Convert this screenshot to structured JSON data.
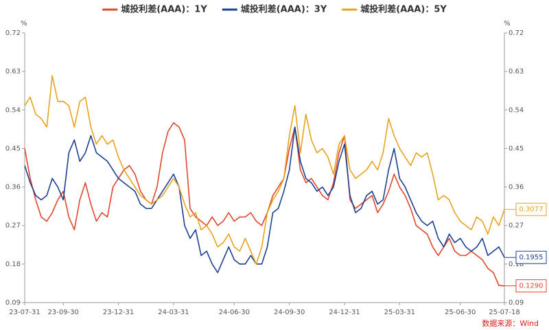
{
  "chart_data": {
    "type": "line",
    "y_unit": "%",
    "y2_unit": "%",
    "source": "数据来源：Wind",
    "categories": [
      "23-07-31",
      null,
      null,
      null,
      null,
      null,
      null,
      "23-09-30",
      null,
      null,
      null,
      null,
      null,
      null,
      null,
      null,
      null,
      "23-12-31",
      null,
      null,
      null,
      null,
      null,
      null,
      null,
      null,
      null,
      "24-03-31",
      null,
      null,
      null,
      null,
      null,
      null,
      null,
      null,
      null,
      null,
      "24-06-30",
      null,
      null,
      null,
      null,
      null,
      null,
      null,
      null,
      null,
      "24-09-30",
      null,
      null,
      null,
      null,
      null,
      null,
      null,
      null,
      null,
      "24-12-31",
      null,
      null,
      null,
      null,
      null,
      null,
      null,
      null,
      null,
      "25-03-31",
      null,
      null,
      null,
      null,
      null,
      null,
      null,
      null,
      null,
      null,
      "25-06-30",
      null,
      null,
      null,
      null,
      null,
      null,
      null,
      "25-07-18"
    ],
    "series": [
      {
        "name": "城投利差(AAA)：1Y",
        "color": "#e0452b",
        "end_label": "0.1290",
        "values": [
          0.45,
          0.38,
          0.33,
          0.29,
          0.28,
          0.3,
          0.33,
          0.35,
          0.29,
          0.26,
          0.33,
          0.37,
          0.32,
          0.28,
          0.3,
          0.29,
          0.36,
          0.38,
          0.4,
          0.41,
          0.39,
          0.35,
          0.33,
          0.32,
          0.36,
          0.44,
          0.49,
          0.51,
          0.5,
          0.47,
          0.31,
          0.29,
          0.28,
          0.27,
          0.29,
          0.27,
          0.28,
          0.3,
          0.28,
          0.29,
          0.29,
          0.3,
          0.28,
          0.27,
          0.3,
          0.34,
          0.36,
          0.38,
          0.45,
          0.5,
          0.4,
          0.37,
          0.38,
          0.36,
          0.34,
          0.33,
          0.37,
          0.44,
          0.48,
          0.33,
          0.31,
          0.32,
          0.33,
          0.34,
          0.3,
          0.32,
          0.35,
          0.39,
          0.36,
          0.34,
          0.31,
          0.27,
          0.26,
          0.25,
          0.22,
          0.2,
          0.22,
          0.24,
          0.21,
          0.2,
          0.2,
          0.21,
          0.2,
          0.19,
          0.17,
          0.16,
          0.13,
          0.129
        ]
      },
      {
        "name": "城投利差(AAA)：3Y",
        "color": "#1a3f8f",
        "end_label": "0.1955",
        "values": [
          0.41,
          0.37,
          0.34,
          0.33,
          0.34,
          0.38,
          0.36,
          0.33,
          0.44,
          0.47,
          0.42,
          0.44,
          0.48,
          0.44,
          0.43,
          0.42,
          0.4,
          0.38,
          0.37,
          0.36,
          0.35,
          0.32,
          0.31,
          0.31,
          0.33,
          0.35,
          0.37,
          0.39,
          0.36,
          0.27,
          0.24,
          0.26,
          0.2,
          0.21,
          0.18,
          0.16,
          0.19,
          0.22,
          0.19,
          0.18,
          0.18,
          0.2,
          0.18,
          0.18,
          0.22,
          0.3,
          0.31,
          0.35,
          0.4,
          0.5,
          0.42,
          0.38,
          0.37,
          0.35,
          0.36,
          0.34,
          0.36,
          0.42,
          0.46,
          0.34,
          0.3,
          0.31,
          0.34,
          0.35,
          0.32,
          0.33,
          0.4,
          0.45,
          0.38,
          0.36,
          0.33,
          0.3,
          0.28,
          0.27,
          0.28,
          0.24,
          0.22,
          0.25,
          0.23,
          0.24,
          0.22,
          0.21,
          0.22,
          0.24,
          0.2,
          0.21,
          0.22,
          0.1955
        ]
      },
      {
        "name": "城投利差(AAA)：5Y",
        "color": "#e8a21c",
        "end_label": "0.3077",
        "values": [
          0.55,
          0.57,
          0.53,
          0.52,
          0.5,
          0.62,
          0.56,
          0.56,
          0.55,
          0.5,
          0.56,
          0.57,
          0.5,
          0.46,
          0.48,
          0.46,
          0.47,
          0.43,
          0.4,
          0.38,
          0.36,
          0.34,
          0.33,
          0.32,
          0.33,
          0.34,
          0.36,
          0.38,
          0.36,
          0.32,
          0.29,
          0.3,
          0.26,
          0.27,
          0.25,
          0.22,
          0.23,
          0.25,
          0.22,
          0.21,
          0.24,
          0.21,
          0.18,
          0.22,
          0.3,
          0.33,
          0.35,
          0.38,
          0.48,
          0.55,
          0.44,
          0.53,
          0.47,
          0.44,
          0.45,
          0.43,
          0.39,
          0.46,
          0.48,
          0.4,
          0.38,
          0.39,
          0.4,
          0.42,
          0.4,
          0.44,
          0.52,
          0.48,
          0.45,
          0.43,
          0.41,
          0.44,
          0.43,
          0.44,
          0.39,
          0.33,
          0.34,
          0.33,
          0.3,
          0.28,
          0.27,
          0.26,
          0.29,
          0.28,
          0.25,
          0.29,
          0.27,
          0.3077
        ]
      }
    ],
    "ylim": [
      0.09,
      0.72
    ],
    "yticks": [
      0.09,
      0.18,
      0.27,
      0.36,
      0.45,
      0.54,
      0.63,
      0.72
    ],
    "y2lim": [
      0.09,
      0.72
    ],
    "y2ticks": [
      0.09,
      0.18,
      0.27,
      0.36,
      0.45,
      0.54,
      0.63,
      0.72
    ],
    "grid": false,
    "legend": "top"
  }
}
